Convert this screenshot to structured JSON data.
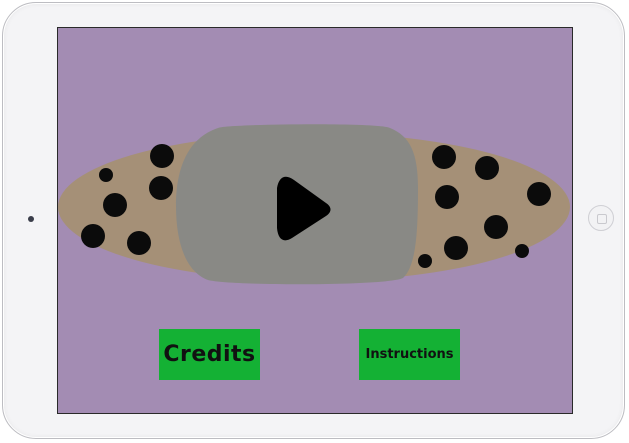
{
  "menu": {
    "credits_label": "Credits",
    "instructions_label": "Instructions"
  },
  "icons": {
    "play": "play-icon",
    "camera": "front-camera",
    "home": "home-button"
  },
  "colors": {
    "screen_background": "#a38cb3",
    "cookie": "#a59077",
    "chocolate_chip": "#0b0b0b",
    "play_button": "#898985",
    "play_glyph": "#000000",
    "menu_button": "#14b134",
    "menu_text": "#111111"
  }
}
